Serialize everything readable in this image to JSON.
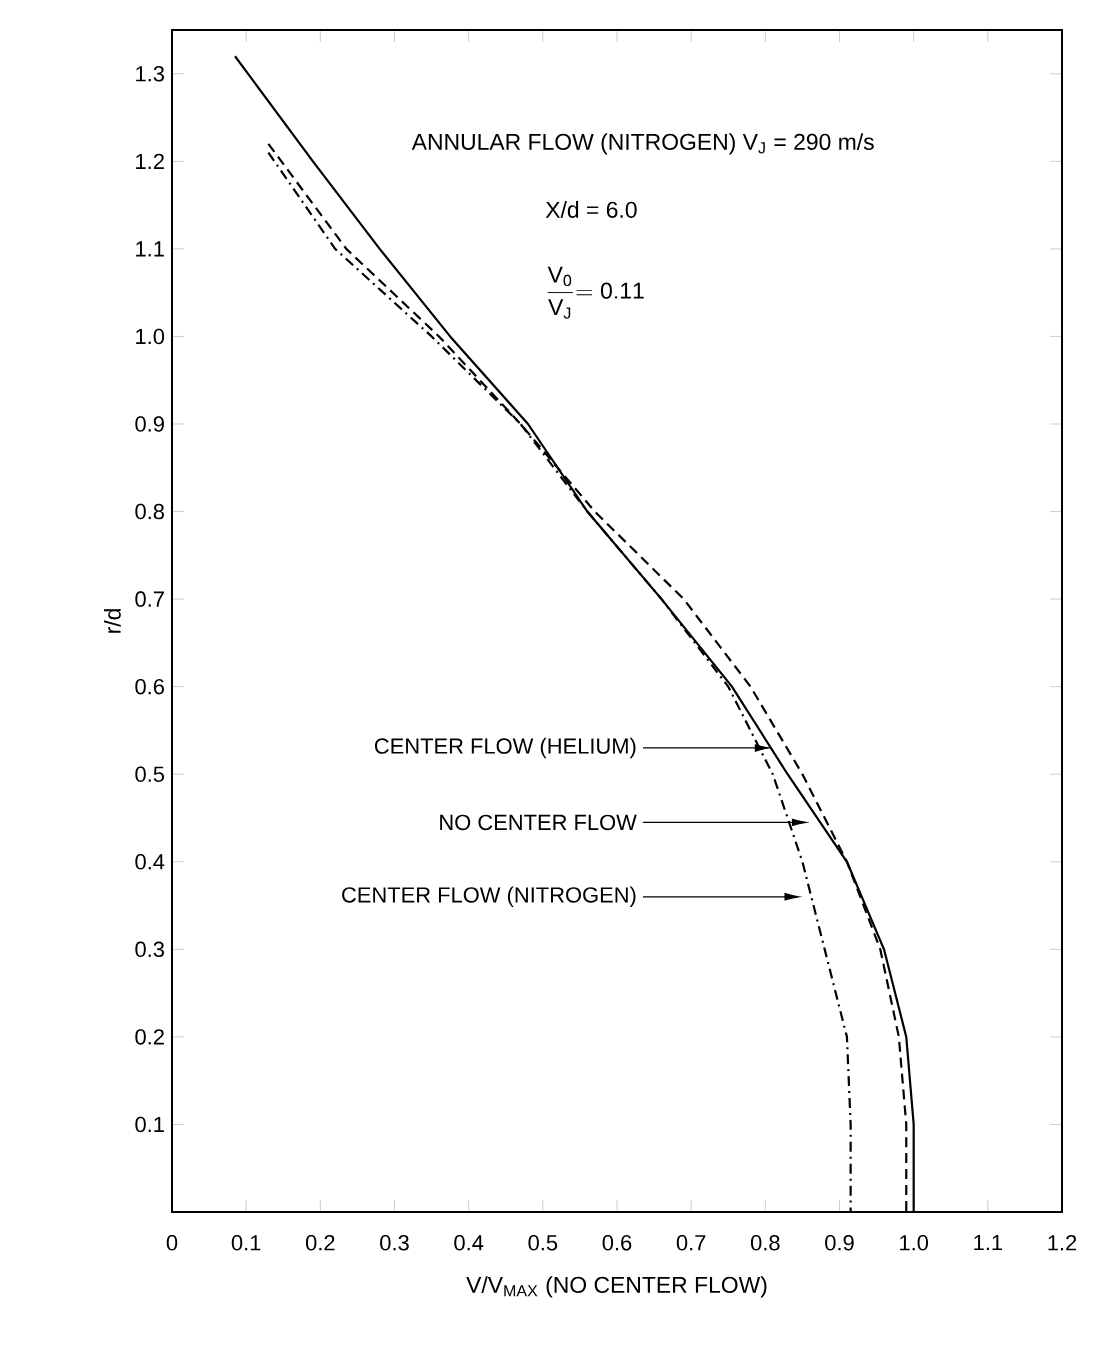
{
  "chart_data": {
    "type": "line",
    "xlabel": "V/V$_{MAX}$ (NO CENTER FLOW)",
    "ylabel": "r/d",
    "xlim": [
      0,
      1.2
    ],
    "ylim": [
      0,
      1.35
    ],
    "xticks": [
      0,
      0.1,
      0.2,
      0.3,
      0.4,
      0.5,
      0.6,
      0.7,
      0.8,
      0.9,
      {
        "value": 1.0,
        "label": "1.0"
      },
      1.1,
      1.2
    ],
    "yticks": [
      0.1,
      0.2,
      0.3,
      0.4,
      0.5,
      0.6,
      0.7,
      0.8,
      0.9,
      {
        "value": 1.0,
        "label": "1.0"
      },
      1.1,
      1.2,
      1.3
    ],
    "grid": false,
    "legend": false,
    "marker": "none",
    "annotations": [
      "ANNULAR FLOW (NITROGEN) V$_{J}$ = 290 m/s",
      "X/d = 6.0",
      "\\frac{\\mathrm{V}_{\\mathrm{0}}}{\\mathrm{V}_{\\mathrm{J}}} \\mathrm{= 0.11}",
      {
        "text": "CENTER FLOW (HELIUM)",
        "x": 0.81,
        "y": 0.53
      },
      {
        "text": "NO CENTER FLOW",
        "x": 0.86,
        "y": 0.445
      },
      {
        "text": "CENTER FLOW (NITROGEN)",
        "x": 0.85,
        "y": 0.36
      }
    ],
    "series": [
      {
        "color": "#000000",
        "line_style": "dashed",
        "x": [
          0.13,
          0.235,
          0.36,
          0.47,
          0.57,
          0.69,
          0.78,
          0.85,
          0.91,
          0.955,
          0.98,
          0.99,
          0.99
        ],
        "values": [
          1.22,
          1.1,
          1.0,
          0.9,
          0.8,
          0.7,
          0.6,
          0.5,
          0.4,
          0.3,
          0.2,
          0.1,
          0.0
        ]
      },
      {
        "color": "#000000",
        "line_style": "solid",
        "x": [
          0.085,
          0.19,
          0.28,
          0.375,
          0.48,
          0.56,
          0.66,
          0.755,
          0.83,
          0.91,
          0.96,
          0.99,
          1.0,
          1.0
        ],
        "values": [
          1.32,
          1.2,
          1.1,
          1.0,
          0.9,
          0.8,
          0.7,
          0.6,
          0.5,
          0.4,
          0.3,
          0.2,
          0.1,
          0.0
        ]
      },
      {
        "color": "#000000",
        "line_style": "dashdot",
        "x": [
          0.13,
          0.22,
          0.35,
          0.47,
          0.56,
          0.66,
          0.75,
          0.81,
          0.85,
          0.88,
          0.91,
          0.915,
          0.915
        ],
        "values": [
          1.21,
          1.1,
          1.0,
          0.9,
          0.8,
          0.7,
          0.6,
          0.5,
          0.4,
          0.3,
          0.2,
          0.1,
          0.0
        ]
      }
    ]
  }
}
